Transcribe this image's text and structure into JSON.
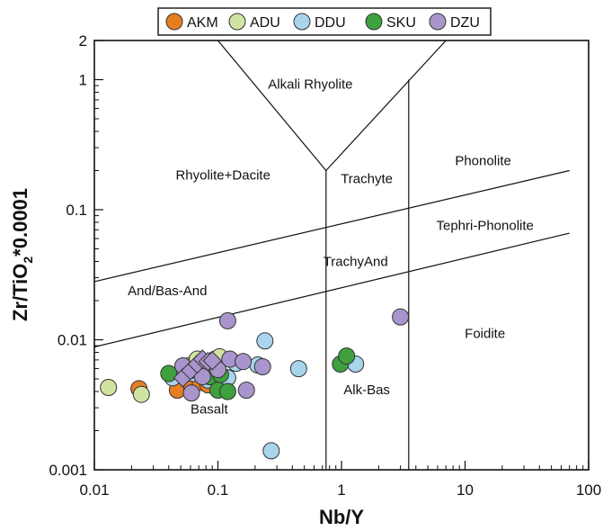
{
  "chart_data": {
    "type": "scatter",
    "title": "",
    "xlabel": "Nb/Y",
    "ylabel_parts": [
      "Zr/TiO",
      "2",
      "*0.0001"
    ],
    "x_scale": "log",
    "y_scale": "log",
    "xlim": [
      0.01,
      100
    ],
    "ylim": [
      0.001,
      2
    ],
    "x_ticks": [
      {
        "value": 0.01,
        "label": "0.01"
      },
      {
        "value": 0.1,
        "label": "0.1"
      },
      {
        "value": 1,
        "label": "1"
      },
      {
        "value": 10,
        "label": "10"
      },
      {
        "value": 100,
        "label": "100"
      }
    ],
    "y_ticks": [
      {
        "value": 0.001,
        "label": "0.001"
      },
      {
        "value": 0.01,
        "label": "0.01"
      },
      {
        "value": 0.1,
        "label": "0.1"
      },
      {
        "value": 1,
        "label": "1"
      },
      {
        "value": 2,
        "label": "2"
      }
    ],
    "grid": false,
    "legend_placement": "top-center",
    "boundaries": [
      {
        "name": "alkali-rhyolite-left",
        "points": [
          [
            0.1,
            2
          ],
          [
            0.75,
            0.2
          ]
        ]
      },
      {
        "name": "alkali-rhyolite-right",
        "points": [
          [
            0.75,
            0.2
          ],
          [
            7,
            2
          ]
        ]
      },
      {
        "name": "trachyte-lower",
        "points": [
          [
            0.75,
            0.2
          ],
          [
            0.75,
            0.001
          ]
        ]
      },
      {
        "name": "phonolite-lower",
        "points": [
          [
            3.5,
            1
          ],
          [
            3.5,
            0.001
          ]
        ]
      },
      {
        "name": "upper-diagonal",
        "points": [
          [
            0.01,
            0.028
          ],
          [
            70,
            0.2
          ]
        ]
      },
      {
        "name": "lower-diagonal",
        "points": [
          [
            0.01,
            0.0088
          ],
          [
            70,
            0.066
          ]
        ]
      }
    ],
    "fields": [
      {
        "label": "Alkali Rhyolite",
        "x": 0.56,
        "y": 0.85
      },
      {
        "label": "Phonolite",
        "x": 14,
        "y": 0.22
      },
      {
        "label": "Rhyolite+Dacite",
        "x": 0.11,
        "y": 0.17
      },
      {
        "label": "Trachyte",
        "x": 1.6,
        "y": 0.16
      },
      {
        "label": "Tephri-Phonolite",
        "x": 14.5,
        "y": 0.07
      },
      {
        "label": "TrachyAnd",
        "x": 1.3,
        "y": 0.037
      },
      {
        "label": "And/Bas-And",
        "x": 0.039,
        "y": 0.022
      },
      {
        "label": "Foidite",
        "x": 14.5,
        "y": 0.0103
      },
      {
        "label": "Alk-Bas",
        "x": 1.6,
        "y": 0.0038
      },
      {
        "label": "Basalt",
        "x": 0.085,
        "y": 0.0027
      }
    ],
    "series": [
      {
        "name": "AKM",
        "color": "#e67e22",
        "marker": "circle",
        "points": [
          [
            0.023,
            0.0042
          ],
          [
            0.047,
            0.0041
          ],
          [
            0.052,
            0.0058
          ],
          [
            0.061,
            0.0044
          ],
          [
            0.072,
            0.0047
          ],
          [
            0.083,
            0.0045
          ]
        ]
      },
      {
        "name": "ADU",
        "color": "#d0e4a0",
        "marker": "circle",
        "points": [
          [
            0.013,
            0.0043
          ],
          [
            0.024,
            0.0038
          ],
          [
            0.058,
            0.0063
          ],
          [
            0.068,
            0.0071
          ],
          [
            0.079,
            0.0066
          ],
          [
            0.095,
            0.0071
          ],
          [
            0.103,
            0.0074
          ]
        ]
      },
      {
        "name": "DDU",
        "color": "#a8d4ec",
        "marker": "circle",
        "points": [
          [
            0.043,
            0.0051
          ],
          [
            0.063,
            0.0055
          ],
          [
            0.083,
            0.0049
          ],
          [
            0.12,
            0.0051
          ],
          [
            0.14,
            0.0066
          ],
          [
            0.21,
            0.0064
          ],
          [
            0.24,
            0.0098
          ],
          [
            0.45,
            0.006
          ],
          [
            0.27,
            0.0014
          ],
          [
            1.3,
            0.0065
          ]
        ]
      },
      {
        "name": "SKU",
        "color": "#3ea13e",
        "marker": "circle",
        "points": [
          [
            0.04,
            0.0055
          ],
          [
            0.06,
            0.0058
          ],
          [
            0.086,
            0.0052
          ],
          [
            0.1,
            0.0041
          ],
          [
            0.12,
            0.004
          ],
          [
            0.105,
            0.0054
          ],
          [
            0.98,
            0.0065
          ],
          [
            1.1,
            0.0075
          ]
        ]
      },
      {
        "name": "DZU",
        "color": "#a995cc",
        "marker": "circle",
        "points": [
          [
            0.052,
            0.0063
          ],
          [
            0.061,
            0.0039
          ],
          [
            0.075,
            0.0052
          ],
          [
            0.1,
            0.0059
          ],
          [
            0.12,
            0.014
          ],
          [
            0.125,
            0.0071
          ],
          [
            0.16,
            0.0068
          ],
          [
            0.17,
            0.0041
          ],
          [
            0.23,
            0.0062
          ],
          [
            3.0,
            0.015
          ]
        ]
      },
      {
        "name": "DZU",
        "color": "#a995cc",
        "marker": "diamond",
        "points": [
          [
            0.052,
            0.0051
          ],
          [
            0.06,
            0.0058
          ],
          [
            0.068,
            0.0065
          ],
          [
            0.075,
            0.0071
          ],
          [
            0.083,
            0.0068
          ],
          [
            0.09,
            0.0069
          ]
        ]
      }
    ],
    "legend": [
      {
        "label": "AKM",
        "color": "#e67e22"
      },
      {
        "label": "ADU",
        "color": "#d0e4a0"
      },
      {
        "label": "DDU",
        "color": "#a8d4ec"
      },
      {
        "label": "SKU",
        "color": "#3ea13e"
      },
      {
        "label": "DZU",
        "color": "#a995cc"
      }
    ]
  }
}
